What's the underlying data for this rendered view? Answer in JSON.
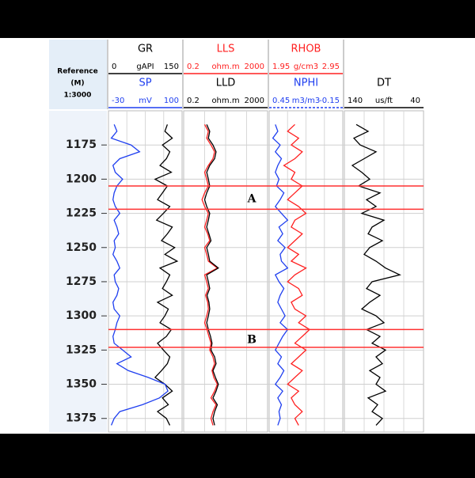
{
  "chart_data": {
    "type": "well-log",
    "reference": {
      "title": "Reference",
      "unit": "(M)",
      "scale": "1:3000"
    },
    "ylim": [
      1150,
      1385
    ],
    "yticks": [
      1175,
      1200,
      1225,
      1250,
      1275,
      1300,
      1325,
      1350,
      1375
    ],
    "grid": true,
    "depth": [
      1160,
      1165,
      1170,
      1175,
      1180,
      1185,
      1190,
      1195,
      1200,
      1205,
      1210,
      1215,
      1220,
      1225,
      1230,
      1235,
      1240,
      1245,
      1250,
      1255,
      1260,
      1265,
      1270,
      1275,
      1280,
      1285,
      1290,
      1295,
      1300,
      1305,
      1310,
      1315,
      1320,
      1325,
      1330,
      1335,
      1340,
      1345,
      1350,
      1355,
      1360,
      1365,
      1370,
      1375,
      1380
    ],
    "series": [
      {
        "name": "GR",
        "unit": "gAPI",
        "color": "#000000",
        "xlim": [
          0,
          150
        ],
        "log": false,
        "values": [
          120,
          115,
          130,
          110,
          125,
          118,
          105,
          128,
          95,
          120,
          110,
          100,
          125,
          112,
          98,
          130,
          120,
          108,
          135,
          115,
          140,
          105,
          125,
          118,
          110,
          130,
          100,
          122,
          115,
          105,
          128,
          118,
          100,
          112,
          125,
          120,
          108,
          95,
          115,
          130,
          110,
          122,
          100,
          118,
          125
        ]
      },
      {
        "name": "SP",
        "unit": "mV",
        "color": "#1f3ff0",
        "xlim": [
          -30,
          100
        ],
        "log": false,
        "values": [
          -20,
          -15,
          -25,
          10,
          25,
          -10,
          -22,
          -18,
          -5,
          -15,
          -20,
          -22,
          -18,
          -10,
          -20,
          -15,
          -12,
          -20,
          -18,
          -22,
          -15,
          -10,
          -20,
          -18,
          -12,
          -15,
          -22,
          -20,
          -10,
          -15,
          -18,
          -22,
          -20,
          -5,
          10,
          -15,
          5,
          40,
          70,
          75,
          60,
          30,
          -10,
          -20,
          -25
        ]
      },
      {
        "name": "LLS",
        "unit": "ohm.m",
        "color": "#ff2020",
        "xlim": [
          0.2,
          2000
        ],
        "log": true,
        "values": [
          2,
          3,
          2.5,
          4,
          6,
          5,
          3,
          2,
          2.5,
          3,
          2,
          1.5,
          2,
          3,
          2.5,
          2,
          2.8,
          3.5,
          2,
          2.5,
          3,
          8,
          2,
          2.5,
          3,
          2.2,
          2.8,
          3,
          2.5,
          2,
          2.6,
          3.2,
          4,
          3.5,
          5,
          6,
          4.5,
          5.5,
          8,
          6,
          4,
          7,
          5,
          4,
          5
        ]
      },
      {
        "name": "LLD",
        "unit": "ohm.m",
        "color": "#000000",
        "xlim": [
          0.2,
          2000
        ],
        "log": true,
        "values": [
          2.5,
          3.5,
          3,
          5,
          7,
          6,
          3.5,
          2.5,
          3,
          3.5,
          2.5,
          2,
          2.5,
          3.5,
          3,
          2.5,
          3.2,
          4,
          2.5,
          3,
          3.5,
          9,
          2.5,
          3,
          3.5,
          2.6,
          3.2,
          3.5,
          3,
          2.5,
          3,
          3.8,
          4.5,
          4,
          6,
          7,
          5,
          6.5,
          9,
          7,
          5,
          8,
          6,
          5,
          6
        ]
      },
      {
        "name": "RHOB",
        "unit": "g/cm3",
        "color": "#ff2020",
        "xlim": [
          1.95,
          2.95
        ],
        "log": false,
        "values": [
          2.3,
          2.2,
          2.35,
          2.25,
          2.4,
          2.3,
          2.15,
          2.3,
          2.25,
          2.4,
          2.3,
          2.2,
          2.35,
          2.45,
          2.3,
          2.25,
          2.4,
          2.3,
          2.2,
          2.35,
          2.25,
          2.45,
          2.3,
          2.2,
          2.35,
          2.4,
          2.25,
          2.3,
          2.45,
          2.35,
          2.5,
          2.4,
          2.3,
          2.45,
          2.35,
          2.25,
          2.4,
          2.3,
          2.2,
          2.35,
          2.25,
          2.3,
          2.4,
          2.3,
          2.35
        ]
      },
      {
        "name": "NPHI",
        "unit": "m3/m3",
        "color": "#1f3ff0",
        "xlim": [
          0.45,
          -0.15
        ],
        "log": false,
        "values": [
          0.4,
          0.38,
          0.42,
          0.36,
          0.4,
          0.35,
          0.38,
          0.4,
          0.37,
          0.39,
          0.33,
          0.36,
          0.4,
          0.35,
          0.3,
          0.37,
          0.34,
          0.38,
          0.32,
          0.36,
          0.35,
          0.3,
          0.4,
          0.37,
          0.33,
          0.36,
          0.38,
          0.35,
          0.32,
          0.36,
          0.3,
          0.34,
          0.37,
          0.4,
          0.35,
          0.38,
          0.33,
          0.36,
          0.4,
          0.34,
          0.38,
          0.35,
          0.37,
          0.36,
          0.38
        ]
      },
      {
        "name": "DT",
        "unit": "us/ft",
        "color": "#000000",
        "xlim": [
          140,
          40
        ],
        "log": false,
        "values": [
          125,
          110,
          128,
          120,
          100,
          115,
          130,
          118,
          108,
          122,
          95,
          112,
          100,
          118,
          90,
          105,
          110,
          92,
          108,
          115,
          100,
          88,
          70,
          105,
          112,
          95,
          108,
          118,
          100,
          90,
          112,
          95,
          105,
          88,
          100,
          92,
          108,
          95,
          100,
          88,
          110,
          98,
          105,
          92,
          100
        ]
      }
    ],
    "zones": [
      {
        "label": "A",
        "top": 1205,
        "bottom": 1222
      },
      {
        "label": "B",
        "top": 1310,
        "bottom": 1323
      }
    ]
  }
}
